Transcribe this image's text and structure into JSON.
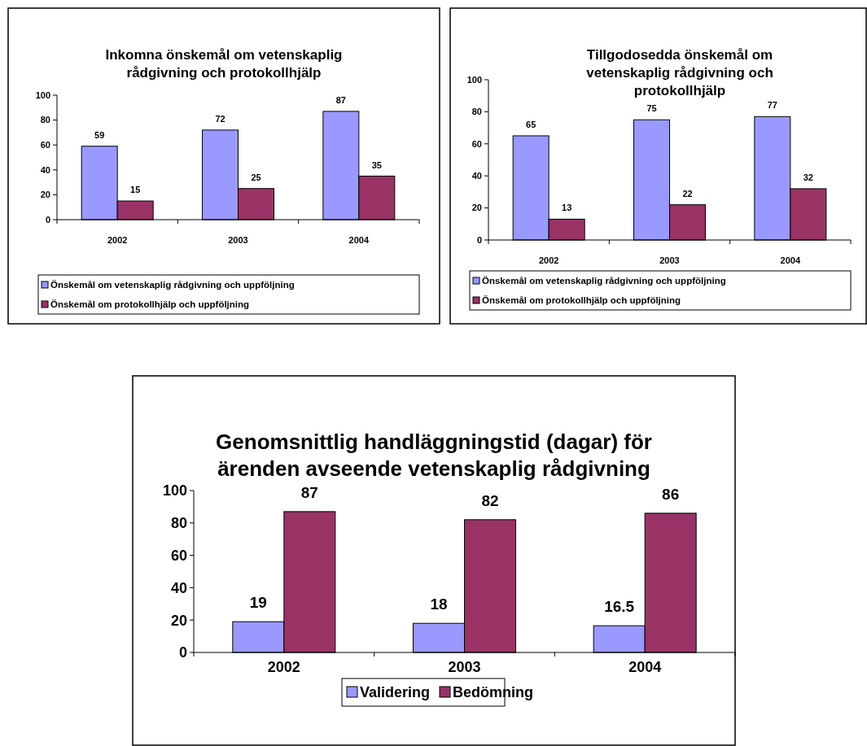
{
  "chart_data": [
    {
      "type": "bar",
      "title": "Inkomna önskemål om vetenskaplig rådgivning och protokollhjälp",
      "categories": [
        "2002",
        "2003",
        "2004"
      ],
      "series": [
        {
          "name": "Önskemål om vetenskaplig rådgivning och uppföljning",
          "color": "#9999ff",
          "values": [
            59,
            72,
            87
          ]
        },
        {
          "name": "Önskemål om protokollhjälp och uppföljning",
          "color": "#993366",
          "values": [
            15,
            25,
            35
          ]
        }
      ],
      "ylim": [
        0,
        100
      ],
      "yticks": [
        0,
        20,
        40,
        60,
        80,
        100
      ],
      "data_labels": true,
      "legend": "bottom",
      "grid": false
    },
    {
      "type": "bar",
      "title": "Tillgodosedda önskemål om vetenskaplig rådgivning och protokollhjälp",
      "categories": [
        "2002",
        "2003",
        "2004"
      ],
      "series": [
        {
          "name": "Önskemål om vetenskaplig rådgivning och uppföljning",
          "color": "#9999ff",
          "values": [
            65,
            75,
            77
          ]
        },
        {
          "name": "Önskemål om protokollhjälp och uppföljning",
          "color": "#993366",
          "values": [
            13,
            22,
            32
          ]
        }
      ],
      "ylim": [
        0,
        100
      ],
      "yticks": [
        0,
        20,
        40,
        60,
        80,
        100
      ],
      "data_labels": true,
      "legend": "bottom",
      "grid": false
    },
    {
      "type": "bar",
      "title": "Genomsnittlig handläggningstid (dagar) för ärenden avseende vetenskaplig rådgivning",
      "categories": [
        "2002",
        "2003",
        "2004"
      ],
      "series": [
        {
          "name": "Validering",
          "color": "#9999ff",
          "values": [
            19,
            18,
            16.5
          ]
        },
        {
          "name": "Bedömning",
          "color": "#993366",
          "values": [
            87,
            82,
            86
          ]
        }
      ],
      "ylim": [
        0,
        100
      ],
      "yticks": [
        0,
        20,
        40,
        60,
        80,
        100
      ],
      "data_labels": true,
      "legend": "bottom",
      "grid": false
    }
  ]
}
